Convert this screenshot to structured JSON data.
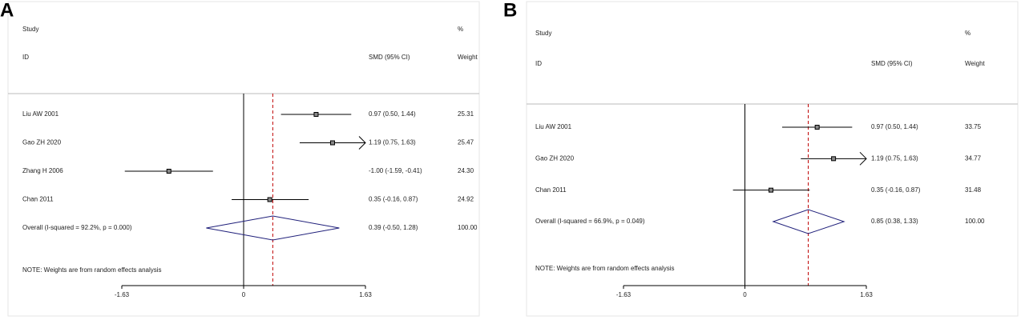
{
  "chart_data": [
    {
      "type": "forest",
      "panel_label": "A",
      "header": {
        "study": "Study",
        "id": "ID",
        "effect": "SMD (95% CI)",
        "pct": "%",
        "weight": "Weight"
      },
      "categories": [
        "Liu AW 2001",
        "Gao ZH 2020",
        "Zhang H 2006",
        "Chan 2011"
      ],
      "values": [
        0.97,
        1.19,
        -1.0,
        0.35
      ],
      "lower": [
        0.5,
        0.75,
        -1.59,
        -0.16
      ],
      "upper": [
        1.44,
        1.63,
        -0.41,
        0.87
      ],
      "ci_labels": [
        "0.97 (0.50, 1.44)",
        "1.19 (0.75, 1.63)",
        "-1.00 (-1.59, -0.41)",
        "0.35 (-0.16, 0.87)"
      ],
      "weight_labels": [
        "25.31",
        "25.47",
        "24.30",
        "24.92"
      ],
      "overall": {
        "label": "Overall  (I-squared = 92.2%, p = 0.000)",
        "value": 0.39,
        "lower": -0.5,
        "upper": 1.28,
        "ci_label": "0.39 (-0.50, 1.28)",
        "weight_label": "100.00"
      },
      "note": "NOTE: Weights are from random effects analysis",
      "xlim": [
        -1.63,
        1.63
      ],
      "xticks": [
        -1.63,
        0,
        1.63
      ],
      "colors": {
        "diamond": "#1f1f7a",
        "overall_line": "#c00000",
        "marks": "#000000"
      }
    },
    {
      "type": "forest",
      "panel_label": "B",
      "header": {
        "study": "Study",
        "id": "ID",
        "effect": "SMD (95% CI)",
        "pct": "%",
        "weight": "Weight"
      },
      "categories": [
        "Liu AW 2001",
        "Gao ZH 2020",
        "Chan 2011"
      ],
      "values": [
        0.97,
        1.19,
        0.35
      ],
      "lower": [
        0.5,
        0.75,
        -0.16
      ],
      "upper": [
        1.44,
        1.63,
        0.87
      ],
      "ci_labels": [
        "0.97 (0.50, 1.44)",
        "1.19 (0.75, 1.63)",
        "0.35 (-0.16, 0.87)"
      ],
      "weight_labels": [
        "33.75",
        "34.77",
        "31.48"
      ],
      "overall": {
        "label": "Overall  (I-squared = 66.9%, p = 0.049)",
        "value": 0.85,
        "lower": 0.38,
        "upper": 1.33,
        "ci_label": "0.85 (0.38, 1.33)",
        "weight_label": "100.00"
      },
      "note": "NOTE: Weights are from random effects analysis",
      "xlim": [
        -1.63,
        1.63
      ],
      "xticks": [
        -1.63,
        0,
        1.63
      ],
      "colors": {
        "diamond": "#1f1f7a",
        "overall_line": "#c00000",
        "marks": "#000000"
      }
    }
  ]
}
